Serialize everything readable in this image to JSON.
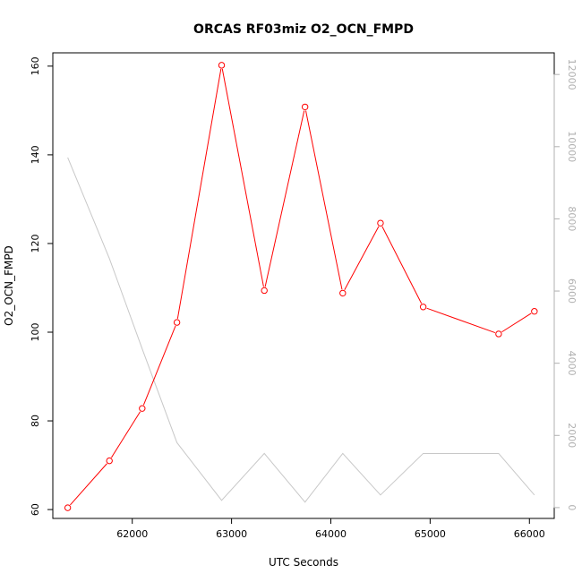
{
  "chart_data": {
    "type": "line",
    "title": "ORCAS RF03miz O2_OCN_FMPD",
    "xlabel": "UTC Seconds",
    "ylabel": "O2_OCN_FMPD",
    "xlim": [
      61200,
      66250
    ],
    "ylim": [
      58,
      163
    ],
    "y2lim": [
      -300,
      12600
    ],
    "xticks": [
      62000,
      63000,
      64000,
      65000,
      66000
    ],
    "yticks": [
      60,
      80,
      100,
      120,
      140,
      160
    ],
    "y2ticks": [
      0,
      2000,
      4000,
      6000,
      8000,
      10000,
      12000
    ],
    "grid": false,
    "legend": "none",
    "series": [
      {
        "axis": "left",
        "color": "#ff0000",
        "marker": "open-circle",
        "x": [
          61350,
          61770,
          62100,
          62450,
          62900,
          63330,
          63740,
          64120,
          64500,
          64930,
          65690,
          66050
        ],
        "values": [
          60.4,
          71.0,
          82.8,
          102.2,
          160.2,
          109.4,
          150.8,
          108.8,
          124.6,
          105.7,
          99.6,
          104.7
        ]
      },
      {
        "axis": "right",
        "color": "#c8c8c8",
        "marker": "none",
        "x": [
          61350,
          61770,
          62100,
          62450,
          62900,
          63330,
          63740,
          64120,
          64500,
          64930,
          65690,
          66050
        ],
        "values": [
          9700,
          6900,
          4400,
          1800,
          200,
          1500,
          150,
          1500,
          350,
          1500,
          1500,
          350
        ]
      }
    ]
  }
}
